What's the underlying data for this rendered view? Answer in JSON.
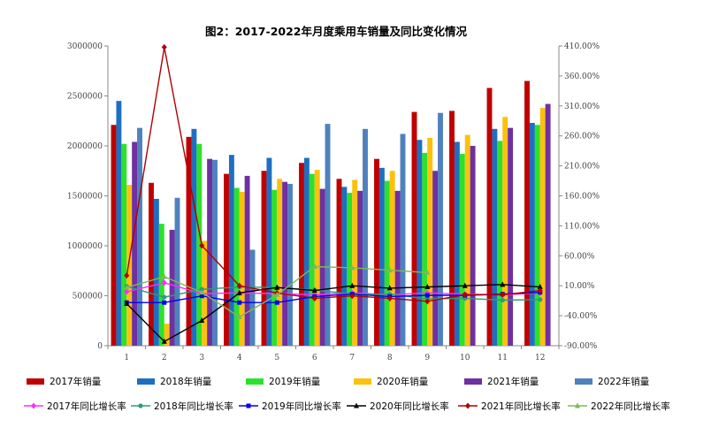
{
  "chart_data": {
    "type": "bar",
    "title": "图2：2017-2022年月度乘用车销量及同比变化情况",
    "categories": [
      "1",
      "2",
      "3",
      "4",
      "5",
      "6",
      "7",
      "8",
      "9",
      "10",
      "11",
      "12"
    ],
    "ylim_left": [
      0,
      3000000
    ],
    "yticks_left": [
      "0",
      "500000",
      "1000000",
      "1500000",
      "2000000",
      "2500000",
      "3000000"
    ],
    "ylim_right": [
      -90,
      410
    ],
    "yticks_right": [
      "-90.00%",
      "-40.00%",
      "10.00%",
      "60.00%",
      "110.00%",
      "160.00%",
      "210.00%",
      "260.00%",
      "310.00%",
      "360.00%",
      "410.00%"
    ],
    "grid": false,
    "legend_position": "bottom",
    "series": [
      {
        "name": "2017年销量",
        "color": "#c00000",
        "values": [
          2210000,
          1630000,
          2090000,
          1720000,
          1750000,
          1830000,
          1670000,
          1870000,
          2340000,
          2350000,
          2580000,
          2650000
        ]
      },
      {
        "name": "2018年销量",
        "color": "#1f6fc1",
        "values": [
          2450000,
          1470000,
          2170000,
          1910000,
          1880000,
          1880000,
          1590000,
          1780000,
          2060000,
          2040000,
          2170000,
          2230000
        ]
      },
      {
        "name": "2019年销量",
        "color": "#2ce12c",
        "values": [
          2020000,
          1220000,
          2020000,
          1580000,
          1560000,
          1720000,
          1530000,
          1650000,
          1930000,
          1920000,
          2050000,
          2210000
        ]
      },
      {
        "name": "2020年销量",
        "color": "#fcc10d",
        "values": [
          1610000,
          220000,
          1050000,
          1540000,
          1670000,
          1760000,
          1660000,
          1750000,
          2080000,
          2110000,
          2290000,
          2380000
        ]
      },
      {
        "name": "2021年销量",
        "color": "#7030a0",
        "values": [
          2040000,
          1160000,
          1870000,
          1700000,
          1640000,
          1570000,
          1550000,
          1550000,
          1750000,
          2000000,
          2180000,
          2420000
        ]
      },
      {
        "name": "2022年销量",
        "color": "#4f81bd",
        "values": [
          2180000,
          1480000,
          1860000,
          960000,
          1620000,
          2220000,
          2170000,
          2120000,
          2330000,
          0,
          0,
          0
        ]
      }
    ],
    "line_series": [
      {
        "name": "2017年同比增长率",
        "color": "#ff2cff",
        "marker": "diamond",
        "values": [
          0,
          15,
          -3,
          -2,
          -3,
          -5,
          -2,
          -5,
          -2,
          -4,
          -5,
          -2
        ]
      },
      {
        "name": "2018年同比增长率",
        "color": "#2e9a7e",
        "marker": "circle",
        "values": [
          9,
          -9,
          4,
          8,
          7,
          3,
          -4,
          -4,
          -12,
          -11,
          -14,
          -13
        ]
      },
      {
        "name": "2019年同比增长率",
        "color": "#0000ee",
        "marker": "square",
        "values": [
          -18,
          -18,
          -7,
          -18,
          -18,
          -8,
          -4,
          -8,
          -6,
          -6,
          -4,
          -1
        ]
      },
      {
        "name": "2020年同比增长率",
        "color": "#000000",
        "marker": "triangle",
        "values": [
          -20,
          -83,
          -48,
          -2,
          7,
          2,
          10,
          6,
          8,
          10,
          12,
          8
        ]
      },
      {
        "name": "2021年同比增长率",
        "color": "#b00000",
        "marker": "diamond",
        "values": [
          27,
          408,
          77,
          10,
          -2,
          -11,
          -7,
          -11,
          -16,
          -5,
          -5,
          2
        ]
      },
      {
        "name": "2022年同比增长率",
        "color": "#80b858",
        "marker": "triangle",
        "values": [
          7,
          25,
          -1,
          -42,
          -5,
          42,
          40,
          36,
          32
        ]
      }
    ]
  }
}
